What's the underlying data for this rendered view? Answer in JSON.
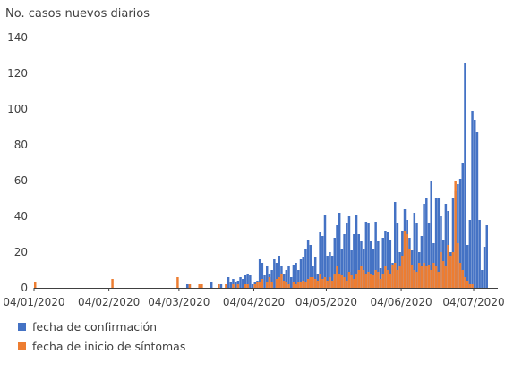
{
  "chart_data": {
    "type": "bar",
    "ylabel": "No. casos nuevos diarios",
    "xlabel": "",
    "ylim": [
      0,
      140
    ],
    "yticks": [
      0,
      20,
      40,
      60,
      80,
      100,
      120,
      140
    ],
    "x_start": "2020-01-04",
    "x_end": "2020-07-14",
    "xticks": [
      "04/01/2020",
      "04/02/2020",
      "04/03/2020",
      "04/04/2020",
      "04/05/2020",
      "04/06/2020",
      "04/07/2020"
    ],
    "grid": false,
    "legend_position": "bottom-left",
    "series": [
      {
        "name": "fecha de confirmación",
        "color": "#4472C4",
        "points": [
          {
            "date": "2020-03-07",
            "value": 2
          },
          {
            "date": "2020-03-08",
            "value": 2
          },
          {
            "date": "2020-03-12",
            "value": 1
          },
          {
            "date": "2020-03-17",
            "value": 3
          },
          {
            "date": "2020-03-20",
            "value": 2
          },
          {
            "date": "2020-03-21",
            "value": 2
          },
          {
            "date": "2020-03-24",
            "value": 6
          },
          {
            "date": "2020-03-25",
            "value": 3
          },
          {
            "date": "2020-03-26",
            "value": 5
          },
          {
            "date": "2020-03-27",
            "value": 3
          },
          {
            "date": "2020-03-28",
            "value": 4
          },
          {
            "date": "2020-03-29",
            "value": 6
          },
          {
            "date": "2020-03-30",
            "value": 5
          },
          {
            "date": "2020-03-31",
            "value": 7
          },
          {
            "date": "2020-04-01",
            "value": 8
          },
          {
            "date": "2020-04-02",
            "value": 7
          },
          {
            "date": "2020-04-03",
            "value": 2
          },
          {
            "date": "2020-04-04",
            "value": 3
          },
          {
            "date": "2020-04-05",
            "value": 4
          },
          {
            "date": "2020-04-06",
            "value": 16
          },
          {
            "date": "2020-04-07",
            "value": 14
          },
          {
            "date": "2020-04-08",
            "value": 7
          },
          {
            "date": "2020-04-09",
            "value": 12
          },
          {
            "date": "2020-04-10",
            "value": 8
          },
          {
            "date": "2020-04-11",
            "value": 10
          },
          {
            "date": "2020-04-12",
            "value": 16
          },
          {
            "date": "2020-04-13",
            "value": 14
          },
          {
            "date": "2020-04-14",
            "value": 18
          },
          {
            "date": "2020-04-15",
            "value": 12
          },
          {
            "date": "2020-04-16",
            "value": 8
          },
          {
            "date": "2020-04-17",
            "value": 10
          },
          {
            "date": "2020-04-18",
            "value": 12
          },
          {
            "date": "2020-04-19",
            "value": 6
          },
          {
            "date": "2020-04-20",
            "value": 13
          },
          {
            "date": "2020-04-21",
            "value": 14
          },
          {
            "date": "2020-04-22",
            "value": 10
          },
          {
            "date": "2020-04-23",
            "value": 16
          },
          {
            "date": "2020-04-24",
            "value": 17
          },
          {
            "date": "2020-04-25",
            "value": 22
          },
          {
            "date": "2020-04-26",
            "value": 27
          },
          {
            "date": "2020-04-27",
            "value": 24
          },
          {
            "date": "2020-04-28",
            "value": 12
          },
          {
            "date": "2020-04-29",
            "value": 17
          },
          {
            "date": "2020-04-30",
            "value": 8
          },
          {
            "date": "2020-05-01",
            "value": 31
          },
          {
            "date": "2020-05-02",
            "value": 29
          },
          {
            "date": "2020-05-03",
            "value": 41
          },
          {
            "date": "2020-05-04",
            "value": 18
          },
          {
            "date": "2020-05-05",
            "value": 20
          },
          {
            "date": "2020-05-06",
            "value": 18
          },
          {
            "date": "2020-05-07",
            "value": 28
          },
          {
            "date": "2020-05-08",
            "value": 35
          },
          {
            "date": "2020-05-09",
            "value": 42
          },
          {
            "date": "2020-05-10",
            "value": 22
          },
          {
            "date": "2020-05-11",
            "value": 30
          },
          {
            "date": "2020-05-12",
            "value": 36
          },
          {
            "date": "2020-05-13",
            "value": 40
          },
          {
            "date": "2020-05-14",
            "value": 21
          },
          {
            "date": "2020-05-15",
            "value": 30
          },
          {
            "date": "2020-05-16",
            "value": 41
          },
          {
            "date": "2020-05-17",
            "value": 30
          },
          {
            "date": "2020-05-18",
            "value": 26
          },
          {
            "date": "2020-05-19",
            "value": 22
          },
          {
            "date": "2020-05-20",
            "value": 37
          },
          {
            "date": "2020-05-21",
            "value": 36
          },
          {
            "date": "2020-05-22",
            "value": 26
          },
          {
            "date": "2020-05-23",
            "value": 22
          },
          {
            "date": "2020-05-24",
            "value": 37
          },
          {
            "date": "2020-05-25",
            "value": 26
          },
          {
            "date": "2020-05-26",
            "value": 11
          },
          {
            "date": "2020-05-27",
            "value": 28
          },
          {
            "date": "2020-05-28",
            "value": 32
          },
          {
            "date": "2020-05-29",
            "value": 31
          },
          {
            "date": "2020-05-30",
            "value": 27
          },
          {
            "date": "2020-05-31",
            "value": 14
          },
          {
            "date": "2020-06-01",
            "value": 48
          },
          {
            "date": "2020-06-02",
            "value": 36
          },
          {
            "date": "2020-06-03",
            "value": 20
          },
          {
            "date": "2020-06-04",
            "value": 32
          },
          {
            "date": "2020-06-05",
            "value": 44
          },
          {
            "date": "2020-06-06",
            "value": 38
          },
          {
            "date": "2020-06-07",
            "value": 28
          },
          {
            "date": "2020-06-08",
            "value": 21
          },
          {
            "date": "2020-06-09",
            "value": 42
          },
          {
            "date": "2020-06-10",
            "value": 36
          },
          {
            "date": "2020-06-11",
            "value": 20
          },
          {
            "date": "2020-06-12",
            "value": 29
          },
          {
            "date": "2020-06-13",
            "value": 47
          },
          {
            "date": "2020-06-14",
            "value": 50
          },
          {
            "date": "2020-06-15",
            "value": 36
          },
          {
            "date": "2020-06-16",
            "value": 60
          },
          {
            "date": "2020-06-17",
            "value": 25
          },
          {
            "date": "2020-06-18",
            "value": 50
          },
          {
            "date": "2020-06-19",
            "value": 50
          },
          {
            "date": "2020-06-20",
            "value": 40
          },
          {
            "date": "2020-06-21",
            "value": 27
          },
          {
            "date": "2020-06-22",
            "value": 47
          },
          {
            "date": "2020-06-23",
            "value": 43
          },
          {
            "date": "2020-06-24",
            "value": 20
          },
          {
            "date": "2020-06-25",
            "value": 50
          },
          {
            "date": "2020-06-26",
            "value": 54
          },
          {
            "date": "2020-06-27",
            "value": 58
          },
          {
            "date": "2020-06-28",
            "value": 61
          },
          {
            "date": "2020-06-29",
            "value": 70
          },
          {
            "date": "2020-06-30",
            "value": 126
          },
          {
            "date": "2020-07-01",
            "value": 24
          },
          {
            "date": "2020-07-02",
            "value": 38
          },
          {
            "date": "2020-07-03",
            "value": 99
          },
          {
            "date": "2020-07-04",
            "value": 94
          },
          {
            "date": "2020-07-05",
            "value": 87
          },
          {
            "date": "2020-07-06",
            "value": 38
          },
          {
            "date": "2020-07-07",
            "value": 10
          },
          {
            "date": "2020-07-08",
            "value": 23
          },
          {
            "date": "2020-07-09",
            "value": 35
          }
        ]
      },
      {
        "name": "fecha de inicio de síntomas",
        "color": "#ED7D31",
        "points": [
          {
            "date": "2020-01-04",
            "value": 3
          },
          {
            "date": "2020-02-05",
            "value": 5
          },
          {
            "date": "2020-03-03",
            "value": 6
          },
          {
            "date": "2020-03-08",
            "value": 2
          },
          {
            "date": "2020-03-12",
            "value": 2
          },
          {
            "date": "2020-03-13",
            "value": 2
          },
          {
            "date": "2020-03-20",
            "value": 2
          },
          {
            "date": "2020-03-23",
            "value": 2
          },
          {
            "date": "2020-03-26",
            "value": 2
          },
          {
            "date": "2020-03-28",
            "value": 2
          },
          {
            "date": "2020-03-31",
            "value": 2
          },
          {
            "date": "2020-04-01",
            "value": 2
          },
          {
            "date": "2020-04-04",
            "value": 2
          },
          {
            "date": "2020-04-05",
            "value": 3
          },
          {
            "date": "2020-04-06",
            "value": 3
          },
          {
            "date": "2020-04-07",
            "value": 5
          },
          {
            "date": "2020-04-09",
            "value": 3
          },
          {
            "date": "2020-04-10",
            "value": 6
          },
          {
            "date": "2020-04-11",
            "value": 3
          },
          {
            "date": "2020-04-13",
            "value": 5
          },
          {
            "date": "2020-04-14",
            "value": 6
          },
          {
            "date": "2020-04-15",
            "value": 8
          },
          {
            "date": "2020-04-16",
            "value": 4
          },
          {
            "date": "2020-04-17",
            "value": 3
          },
          {
            "date": "2020-04-18",
            "value": 2
          },
          {
            "date": "2020-04-20",
            "value": 3
          },
          {
            "date": "2020-04-21",
            "value": 2
          },
          {
            "date": "2020-04-22",
            "value": 3
          },
          {
            "date": "2020-04-23",
            "value": 3
          },
          {
            "date": "2020-04-24",
            "value": 4
          },
          {
            "date": "2020-04-25",
            "value": 3
          },
          {
            "date": "2020-04-26",
            "value": 5
          },
          {
            "date": "2020-04-27",
            "value": 6
          },
          {
            "date": "2020-04-28",
            "value": 6
          },
          {
            "date": "2020-04-29",
            "value": 5
          },
          {
            "date": "2020-04-30",
            "value": 4
          },
          {
            "date": "2020-05-01",
            "value": 8
          },
          {
            "date": "2020-05-02",
            "value": 5
          },
          {
            "date": "2020-05-03",
            "value": 6
          },
          {
            "date": "2020-05-04",
            "value": 4
          },
          {
            "date": "2020-05-05",
            "value": 6
          },
          {
            "date": "2020-05-06",
            "value": 4
          },
          {
            "date": "2020-05-07",
            "value": 8
          },
          {
            "date": "2020-05-08",
            "value": 12
          },
          {
            "date": "2020-05-09",
            "value": 8
          },
          {
            "date": "2020-05-10",
            "value": 7
          },
          {
            "date": "2020-05-11",
            "value": 6
          },
          {
            "date": "2020-05-12",
            "value": 4
          },
          {
            "date": "2020-05-13",
            "value": 9
          },
          {
            "date": "2020-05-14",
            "value": 7
          },
          {
            "date": "2020-05-15",
            "value": 5
          },
          {
            "date": "2020-05-16",
            "value": 8
          },
          {
            "date": "2020-05-17",
            "value": 10
          },
          {
            "date": "2020-05-18",
            "value": 12
          },
          {
            "date": "2020-05-19",
            "value": 10
          },
          {
            "date": "2020-05-20",
            "value": 8
          },
          {
            "date": "2020-05-21",
            "value": 9
          },
          {
            "date": "2020-05-22",
            "value": 8
          },
          {
            "date": "2020-05-23",
            "value": 7
          },
          {
            "date": "2020-05-24",
            "value": 10
          },
          {
            "date": "2020-05-25",
            "value": 9
          },
          {
            "date": "2020-05-26",
            "value": 5
          },
          {
            "date": "2020-05-27",
            "value": 8
          },
          {
            "date": "2020-05-28",
            "value": 12
          },
          {
            "date": "2020-05-29",
            "value": 10
          },
          {
            "date": "2020-05-30",
            "value": 8
          },
          {
            "date": "2020-05-31",
            "value": 13
          },
          {
            "date": "2020-06-01",
            "value": 14
          },
          {
            "date": "2020-06-02",
            "value": 10
          },
          {
            "date": "2020-06-03",
            "value": 12
          },
          {
            "date": "2020-06-04",
            "value": 18
          },
          {
            "date": "2020-06-05",
            "value": 32
          },
          {
            "date": "2020-06-06",
            "value": 30
          },
          {
            "date": "2020-06-07",
            "value": 22
          },
          {
            "date": "2020-06-08",
            "value": 13
          },
          {
            "date": "2020-06-09",
            "value": 10
          },
          {
            "date": "2020-06-10",
            "value": 9
          },
          {
            "date": "2020-06-11",
            "value": 14
          },
          {
            "date": "2020-06-12",
            "value": 12
          },
          {
            "date": "2020-06-13",
            "value": 14
          },
          {
            "date": "2020-06-14",
            "value": 12
          },
          {
            "date": "2020-06-15",
            "value": 13
          },
          {
            "date": "2020-06-16",
            "value": 10
          },
          {
            "date": "2020-06-17",
            "value": 14
          },
          {
            "date": "2020-06-18",
            "value": 12
          },
          {
            "date": "2020-06-19",
            "value": 9
          },
          {
            "date": "2020-06-20",
            "value": 20
          },
          {
            "date": "2020-06-21",
            "value": 15
          },
          {
            "date": "2020-06-22",
            "value": 12
          },
          {
            "date": "2020-06-23",
            "value": 24
          },
          {
            "date": "2020-06-24",
            "value": 18
          },
          {
            "date": "2020-06-25",
            "value": 20
          },
          {
            "date": "2020-06-26",
            "value": 60
          },
          {
            "date": "2020-06-27",
            "value": 25
          },
          {
            "date": "2020-06-28",
            "value": 14
          },
          {
            "date": "2020-06-29",
            "value": 10
          },
          {
            "date": "2020-06-30",
            "value": 6
          },
          {
            "date": "2020-07-01",
            "value": 4
          },
          {
            "date": "2020-07-02",
            "value": 2
          },
          {
            "date": "2020-07-03",
            "value": 2
          }
        ]
      }
    ]
  }
}
